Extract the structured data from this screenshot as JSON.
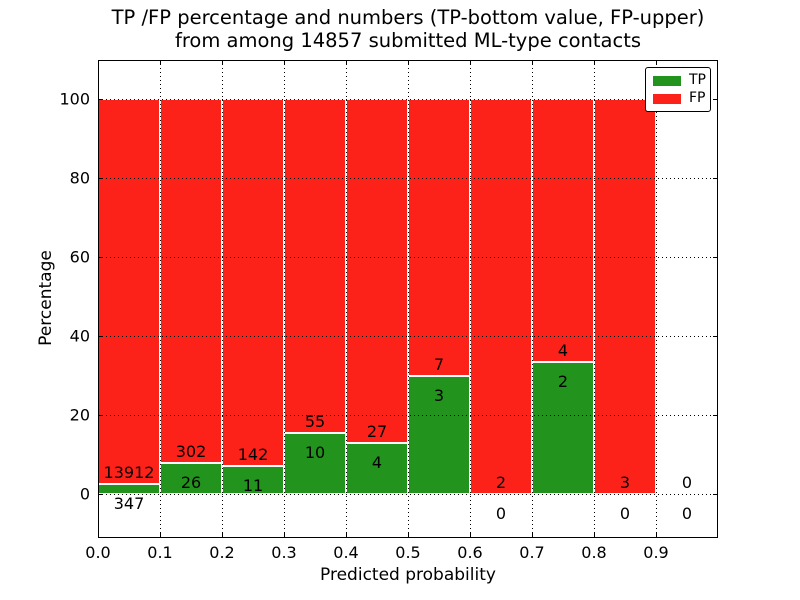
{
  "title": {
    "line1": "TP /FP percentage and numbers (TP-bottom value, FP-upper)",
    "line2": "from among 14857 submitted ML-type contacts"
  },
  "chart_data": {
    "type": "bar",
    "stacked": true,
    "normalized_to_percent": true,
    "title": "TP /FP percentage and numbers (TP-bottom value, FP-upper) from among 14857 submitted ML-type contacts",
    "xlabel": "Predicted probability",
    "ylabel": "Percentage",
    "total_contacts": 14857,
    "bin_width": 0.1,
    "bin_starts": [
      0.0,
      0.1,
      0.2,
      0.3,
      0.4,
      0.5,
      0.6,
      0.7,
      0.8,
      0.9
    ],
    "xtick_labels": [
      "0.0",
      "0.1",
      "0.2",
      "0.3",
      "0.4",
      "0.5",
      "0.6",
      "0.7",
      "0.8",
      "0.9"
    ],
    "yticks": [
      0,
      20,
      40,
      60,
      80,
      100
    ],
    "xlim": [
      0.0,
      1.0
    ],
    "ylim": [
      -11,
      110
    ],
    "grid": "dotted, both axes, drawn over bars",
    "bar_edge_color": "#ffffff",
    "series": [
      {
        "name": "TP",
        "color": "#22931d",
        "counts": [
          347,
          26,
          11,
          10,
          4,
          3,
          0,
          2,
          0,
          0
        ]
      },
      {
        "name": "FP",
        "color": "#fc221a",
        "counts": [
          13912,
          302,
          142,
          55,
          27,
          7,
          2,
          4,
          3,
          0
        ]
      }
    ],
    "tp_percent_per_bin": [
      2.43,
      7.93,
      7.19,
      15.38,
      12.9,
      30.0,
      0.0,
      33.33,
      0.0,
      null
    ],
    "legend": {
      "position": "upper right",
      "items": [
        {
          "label": "TP",
          "color": "#22931d"
        },
        {
          "label": "FP",
          "color": "#fc221a"
        }
      ]
    }
  }
}
